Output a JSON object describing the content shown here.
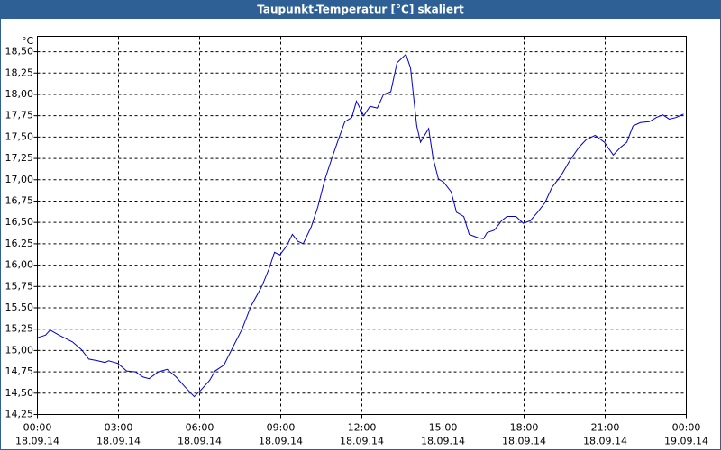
{
  "chart_data": {
    "type": "line",
    "title": "Taupunkt-Temperatur [°C] skaliert",
    "y_label": "°C",
    "x": [
      0.0,
      0.3,
      0.47,
      0.8,
      1.3,
      1.63,
      1.9,
      2.23,
      2.5,
      2.63,
      2.97,
      3.3,
      3.63,
      3.9,
      4.13,
      4.47,
      4.8,
      5.13,
      5.47,
      5.8,
      6.03,
      6.37,
      6.57,
      6.9,
      7.23,
      7.57,
      7.9,
      8.3,
      8.57,
      8.77,
      8.97,
      9.23,
      9.43,
      9.63,
      9.83,
      10.13,
      10.37,
      10.63,
      10.9,
      11.13,
      11.37,
      11.63,
      11.8,
      12.07,
      12.3,
      12.57,
      12.8,
      13.07,
      13.3,
      13.63,
      13.8,
      14.03,
      14.17,
      14.47,
      14.63,
      14.83,
      15.03,
      15.3,
      15.5,
      15.77,
      15.97,
      16.3,
      16.5,
      16.63,
      16.9,
      17.17,
      17.37,
      17.7,
      17.97,
      18.23,
      18.5,
      18.77,
      19.03,
      19.37,
      19.7,
      20.03,
      20.3,
      20.63,
      20.97,
      21.3,
      21.57,
      21.8,
      22.03,
      22.3,
      22.63,
      22.9,
      23.13,
      23.37,
      23.63,
      23.9
    ],
    "series": [
      {
        "name": "Taupunkt-Temperatur",
        "color": "#0000cc",
        "values": [
          15.15,
          15.18,
          15.24,
          15.18,
          15.1,
          15.01,
          14.9,
          14.88,
          14.86,
          14.88,
          14.85,
          14.76,
          14.75,
          14.69,
          14.67,
          14.75,
          14.78,
          14.69,
          14.57,
          14.46,
          14.53,
          14.65,
          14.76,
          14.83,
          15.04,
          15.25,
          15.52,
          15.75,
          15.96,
          16.15,
          16.12,
          16.23,
          16.36,
          16.28,
          16.25,
          16.45,
          16.68,
          17.0,
          17.26,
          17.47,
          17.68,
          17.73,
          17.92,
          17.75,
          17.86,
          17.84,
          18.0,
          18.03,
          18.37,
          18.47,
          18.31,
          17.63,
          17.44,
          17.6,
          17.26,
          17.01,
          16.97,
          16.86,
          16.62,
          16.57,
          16.36,
          16.32,
          16.31,
          16.38,
          16.41,
          16.52,
          16.57,
          16.57,
          16.49,
          16.52,
          16.62,
          16.73,
          16.91,
          17.05,
          17.23,
          17.38,
          17.47,
          17.52,
          17.44,
          17.29,
          17.38,
          17.44,
          17.63,
          17.67,
          17.68,
          17.73,
          17.76,
          17.71,
          17.73,
          17.77
        ]
      }
    ],
    "xlim": [
      0,
      24
    ],
    "xticks": [
      {
        "value": 0,
        "label": "00:00",
        "date": "18.09.14"
      },
      {
        "value": 3,
        "label": "03:00",
        "date": "18.09.14"
      },
      {
        "value": 6,
        "label": "06:00",
        "date": "18.09.14"
      },
      {
        "value": 9,
        "label": "09:00",
        "date": "18.09.14"
      },
      {
        "value": 12,
        "label": "12:00",
        "date": "18.09.14"
      },
      {
        "value": 15,
        "label": "15:00",
        "date": "18.09.14"
      },
      {
        "value": 18,
        "label": "18:00",
        "date": "18.09.14"
      },
      {
        "value": 21,
        "label": "21:00",
        "date": "18.09.14"
      },
      {
        "value": 24,
        "label": "00:00",
        "date": "19.09.14"
      }
    ],
    "ylim": [
      14.25,
      18.68
    ],
    "yticks": [
      {
        "value": 14.25,
        "label": "14,25"
      },
      {
        "value": 14.5,
        "label": "14,50"
      },
      {
        "value": 14.75,
        "label": "14,75"
      },
      {
        "value": 15.0,
        "label": "15,00"
      },
      {
        "value": 15.25,
        "label": "15,25"
      },
      {
        "value": 15.5,
        "label": "15,50"
      },
      {
        "value": 15.75,
        "label": "15,75"
      },
      {
        "value": 16.0,
        "label": "16,00"
      },
      {
        "value": 16.25,
        "label": "16,25"
      },
      {
        "value": 16.5,
        "label": "16,50"
      },
      {
        "value": 16.75,
        "label": "16,75"
      },
      {
        "value": 17.0,
        "label": "17,00"
      },
      {
        "value": 17.25,
        "label": "17,25"
      },
      {
        "value": 17.5,
        "label": "17,50"
      },
      {
        "value": 17.75,
        "label": "17,75"
      },
      {
        "value": 18.0,
        "label": "18,00"
      },
      {
        "value": 18.25,
        "label": "18,25"
      },
      {
        "value": 18.5,
        "label": "18,50"
      }
    ],
    "grid": true
  }
}
